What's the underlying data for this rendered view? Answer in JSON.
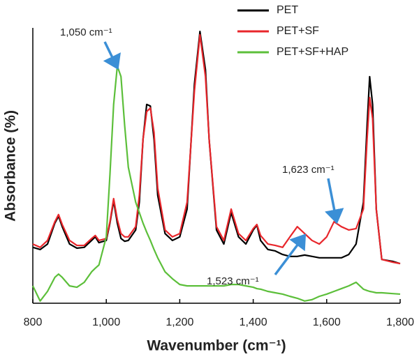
{
  "chart_data": {
    "type": "line",
    "xlabel": "Wavenumber (cm⁻¹)",
    "ylabel": "Absorbance (%)",
    "xlim": [
      800,
      1800
    ],
    "ylim": [
      0,
      100
    ],
    "xticks": [
      800,
      {
        "value": 1000,
        "label": "1,000"
      },
      {
        "value": 1200,
        "label": "1,200"
      },
      {
        "value": 1400,
        "label": "1,400"
      },
      {
        "value": 1600,
        "label": "1,600"
      },
      {
        "value": 1800,
        "label": "1,800"
      }
    ],
    "legend": "upper right",
    "x": [
      800,
      820,
      840,
      860,
      870,
      880,
      900,
      920,
      940,
      960,
      970,
      980,
      1000,
      1010,
      1020,
      1030,
      1040,
      1050,
      1060,
      1080,
      1090,
      1100,
      1110,
      1120,
      1130,
      1140,
      1160,
      1180,
      1200,
      1220,
      1240,
      1255,
      1270,
      1280,
      1300,
      1320,
      1340,
      1360,
      1380,
      1400,
      1410,
      1420,
      1440,
      1460,
      1480,
      1500,
      1520,
      1540,
      1560,
      1580,
      1600,
      1620,
      1640,
      1660,
      1680,
      1700,
      1710,
      1717,
      1725,
      1735,
      1750,
      1780,
      1800
    ],
    "series": [
      {
        "name": "PET",
        "color": "#000000",
        "values": [
          20.3,
          19.5,
          21.5,
          29.1,
          31.6,
          27.8,
          21.5,
          20.0,
          20.3,
          22.8,
          24.1,
          22.0,
          22.8,
          29.1,
          37.2,
          29.1,
          23.5,
          22.5,
          22.8,
          26.6,
          36.7,
          59.5,
          72.2,
          71.6,
          59.5,
          39.2,
          25.3,
          22.8,
          24.1,
          34.2,
          79.7,
          98.7,
          84.8,
          59.5,
          26.6,
          21.5,
          32.9,
          24.1,
          21.5,
          26.6,
          28.4,
          22.8,
          19.5,
          19.0,
          17.7,
          17.0,
          17.0,
          17.5,
          17.0,
          16.5,
          16.5,
          16.5,
          16.5,
          17.7,
          21.5,
          36.7,
          64.6,
          82.3,
          72.2,
          34.2,
          15.9,
          15.2,
          14.4
        ]
      },
      {
        "name": "PET+SF",
        "color": "#e8262b",
        "values": [
          21.5,
          20.3,
          22.8,
          29.6,
          32.2,
          28.6,
          22.8,
          21.0,
          21.0,
          23.5,
          24.6,
          22.8,
          23.5,
          29.6,
          38.0,
          30.4,
          25.3,
          24.1,
          24.1,
          27.8,
          39.2,
          59.5,
          69.6,
          70.9,
          62.0,
          41.8,
          26.6,
          24.1,
          25.3,
          36.7,
          77.2,
          97.5,
          82.3,
          59.5,
          27.8,
          22.8,
          34.2,
          25.3,
          22.8,
          27.1,
          28.6,
          24.6,
          21.5,
          21.0,
          20.3,
          24.1,
          27.8,
          25.3,
          22.8,
          21.5,
          24.1,
          29.6,
          27.8,
          26.6,
          27.1,
          34.2,
          59.5,
          74.7,
          67.1,
          34.2,
          15.9,
          14.9,
          14.4
        ]
      },
      {
        "name": "PET+SF+HAP",
        "color": "#5cbf3a",
        "values": [
          6.3,
          0.8,
          4.3,
          9.4,
          10.6,
          9.4,
          6.3,
          5.8,
          7.6,
          11.4,
          12.7,
          13.9,
          24.1,
          46.8,
          72.2,
          86.1,
          82.3,
          64.6,
          49.4,
          36.7,
          32.9,
          29.1,
          25.8,
          22.8,
          19.5,
          16.5,
          11.4,
          8.9,
          6.8,
          6.3,
          6.3,
          6.3,
          6.3,
          6.3,
          6.3,
          6.3,
          6.8,
          6.8,
          6.3,
          5.8,
          5.3,
          5.1,
          4.3,
          3.8,
          3.3,
          2.5,
          1.8,
          0.8,
          1.3,
          2.5,
          3.3,
          4.3,
          5.3,
          6.3,
          7.6,
          5.1,
          4.6,
          4.3,
          4.1,
          3.8,
          3.8,
          3.5,
          3.3
        ]
      }
    ],
    "annotations": [
      {
        "text": "1,050 cm⁻¹"
      },
      {
        "text": "1,623 cm⁻¹"
      },
      {
        "text": "1,523 cm⁻¹"
      }
    ]
  }
}
